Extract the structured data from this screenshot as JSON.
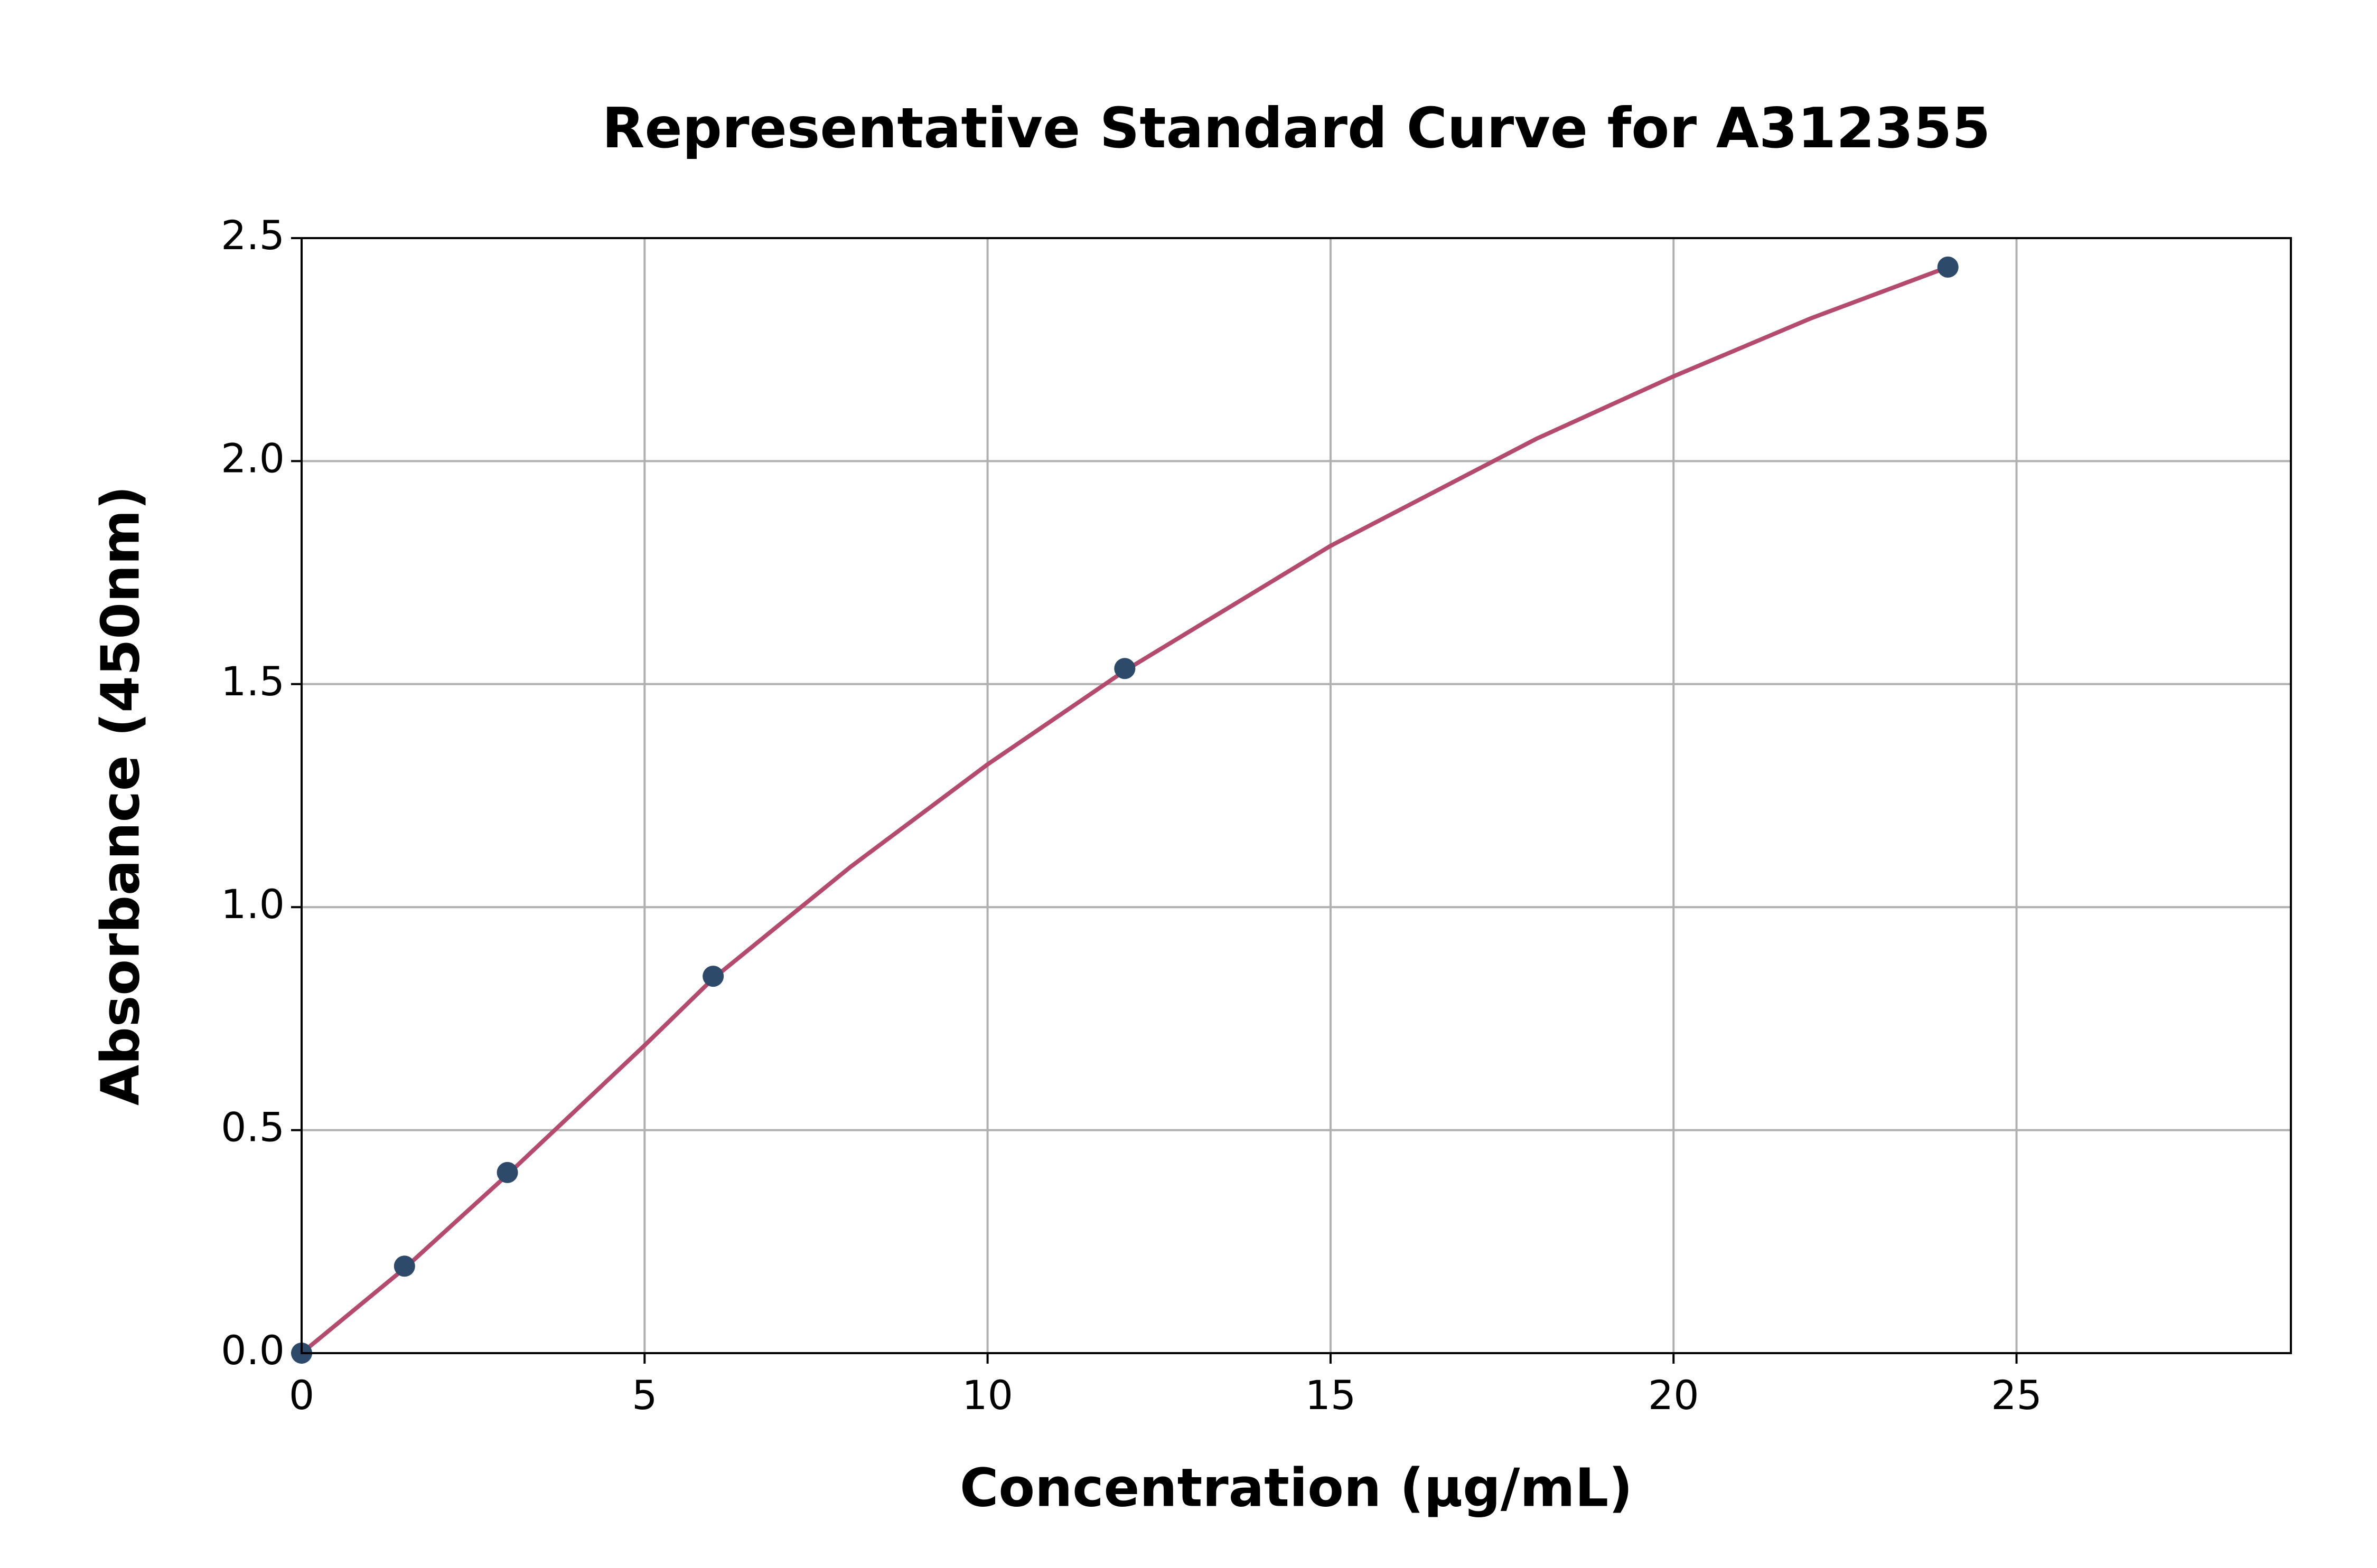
{
  "chart_data": {
    "type": "scatter",
    "title": "Representative Standard Curve for A312355",
    "x_label": "Concentration (µg/mL)",
    "y_label": "Absorbance (450nm)",
    "x": [
      0,
      1.5,
      3,
      6,
      12,
      24
    ],
    "values": [
      0,
      0.195,
      0.405,
      0.845,
      1.535,
      2.435
    ],
    "color": "#2d4a6b",
    "curve": {
      "x": [
        0,
        1.5,
        3,
        5,
        6,
        8,
        10,
        12,
        15,
        18,
        20,
        22,
        24
      ],
      "values": [
        0,
        0.19,
        0.4,
        0.69,
        0.84,
        1.09,
        1.32,
        1.53,
        1.81,
        2.05,
        2.19,
        2.32,
        2.435
      ],
      "color": "#b44a6e"
    },
    "xlim": [
      0,
      29
    ],
    "ylim": [
      0,
      2.5
    ],
    "xticks": [
      0,
      5,
      10,
      15,
      20,
      25
    ],
    "yticks": [
      {
        "value": 0,
        "label": "0.0"
      },
      0.5,
      {
        "value": 1,
        "label": "1.0"
      },
      1.5,
      {
        "value": 2,
        "label": "2.0"
      },
      2.5
    ],
    "grid": true
  }
}
